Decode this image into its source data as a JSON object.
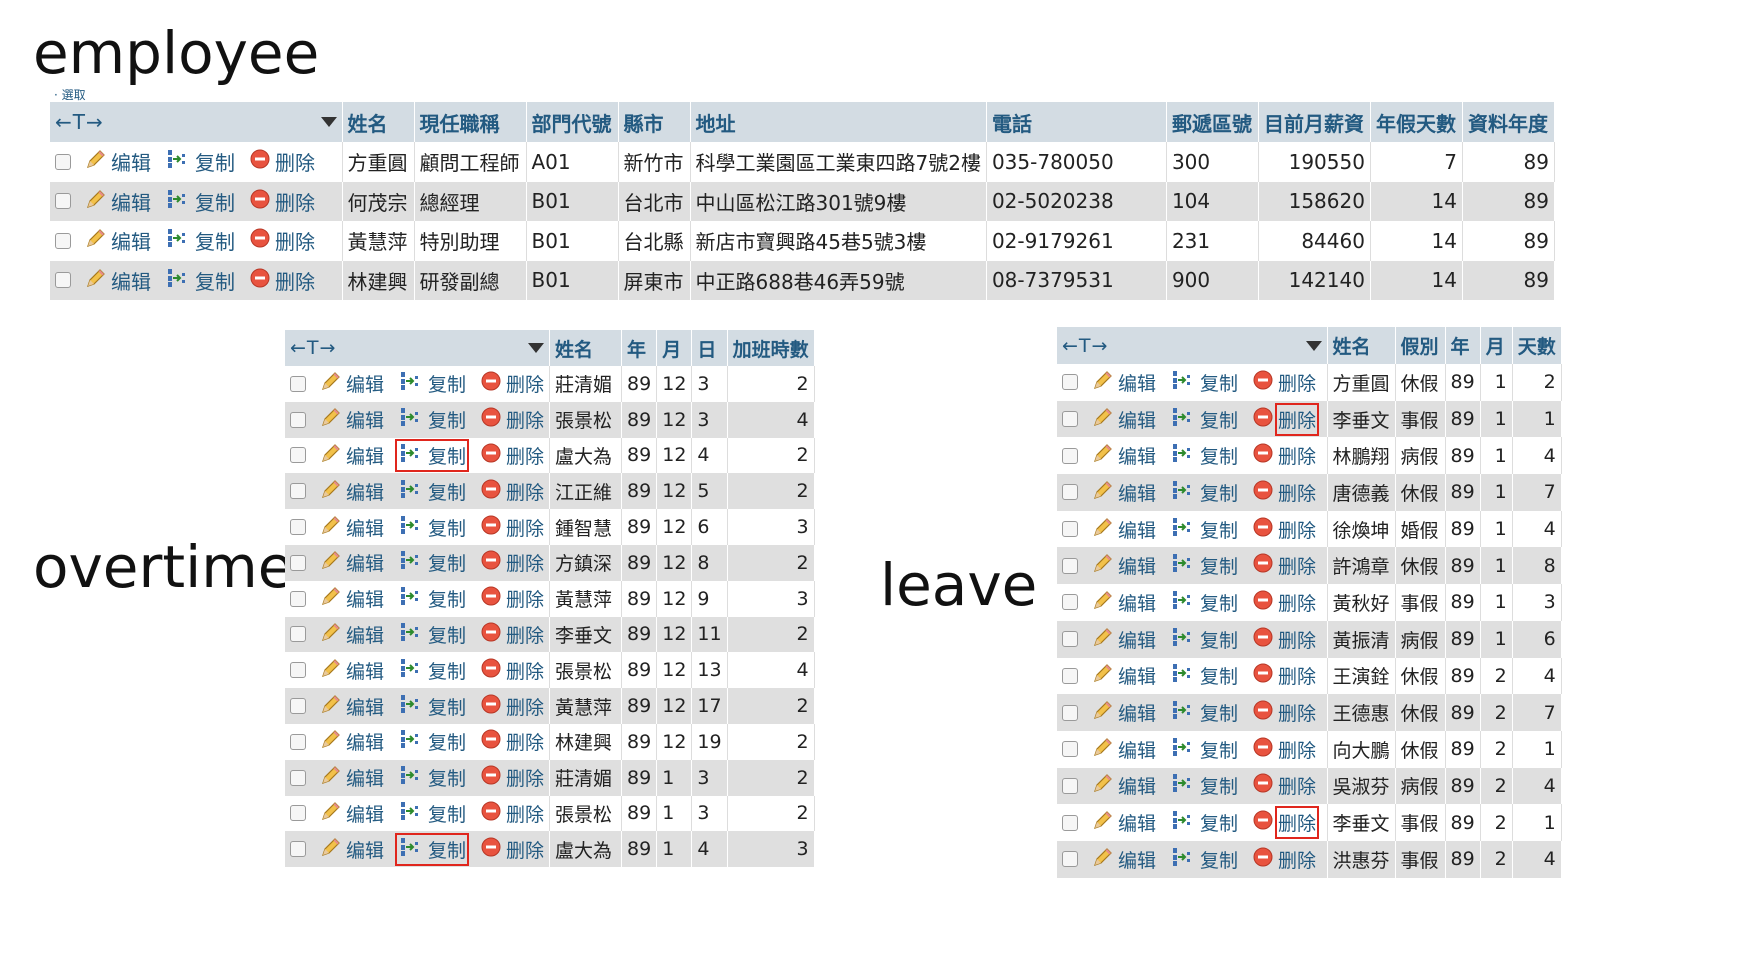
{
  "labels": {
    "employee": "employee",
    "overtime": "overtime",
    "leave": "leave"
  },
  "crumb": "· 選取",
  "nav_arrows": "←T→",
  "actions": {
    "edit": "编辑",
    "copy": "复制",
    "delete": "删除"
  },
  "colors": {
    "header_bg": "#d3dce3",
    "link": "#235a81",
    "row_alt": "#dfdfdf",
    "highlight": "#e0261d"
  },
  "employee": {
    "columns": [
      "姓名",
      "現任職稱",
      "部門代號",
      "縣市",
      "地址",
      "電話",
      "郵遞區號",
      "目前月薪資",
      "年假天數",
      "資料年度"
    ],
    "rows": [
      [
        "方重圓",
        "顧問工程師",
        "A01",
        "新竹市",
        "科學工業園區工業東四路7號2樓",
        "035-780050",
        "300",
        "190550",
        "7",
        "89"
      ],
      [
        "何茂宗",
        "總經理",
        "B01",
        "台北市",
        "中山區松江路301號9樓",
        "02-5020238",
        "104",
        "158620",
        "14",
        "89"
      ],
      [
        "黃慧萍",
        "特別助理",
        "B01",
        "台北縣",
        "新店市寶興路45巷5號3樓",
        "02-9179261",
        "231",
        "84460",
        "14",
        "89"
      ],
      [
        "林建興",
        "研發副總",
        "B01",
        "屏東市",
        "中正路688巷46弄59號",
        "08-7379531",
        "900",
        "142140",
        "14",
        "89"
      ]
    ]
  },
  "overtime": {
    "columns": [
      "姓名",
      "年",
      "月",
      "日",
      "加班時數"
    ],
    "rows": [
      [
        "莊清媚",
        "89",
        "12",
        "3",
        "2"
      ],
      [
        "張景松",
        "89",
        "12",
        "3",
        "4"
      ],
      [
        "盧大為",
        "89",
        "12",
        "4",
        "2"
      ],
      [
        "江正維",
        "89",
        "12",
        "5",
        "2"
      ],
      [
        "鍾智慧",
        "89",
        "12",
        "6",
        "3"
      ],
      [
        "方鎮深",
        "89",
        "12",
        "8",
        "2"
      ],
      [
        "黃慧萍",
        "89",
        "12",
        "9",
        "3"
      ],
      [
        "李垂文",
        "89",
        "12",
        "11",
        "2"
      ],
      [
        "張景松",
        "89",
        "12",
        "13",
        "4"
      ],
      [
        "黃慧萍",
        "89",
        "12",
        "17",
        "2"
      ],
      [
        "林建興",
        "89",
        "12",
        "19",
        "2"
      ],
      [
        "莊清媚",
        "89",
        "1",
        "3",
        "2"
      ],
      [
        "張景松",
        "89",
        "1",
        "3",
        "2"
      ],
      [
        "盧大為",
        "89",
        "1",
        "4",
        "3"
      ]
    ],
    "highlight_copy_rows": [
      2,
      13
    ]
  },
  "leave": {
    "columns": [
      "姓名",
      "假別",
      "年",
      "月",
      "天數"
    ],
    "rows": [
      [
        "方重圓",
        "休假",
        "89",
        "1",
        "2"
      ],
      [
        "李垂文",
        "事假",
        "89",
        "1",
        "1"
      ],
      [
        "林鵬翔",
        "病假",
        "89",
        "1",
        "4"
      ],
      [
        "唐德義",
        "休假",
        "89",
        "1",
        "7"
      ],
      [
        "徐煥坤",
        "婚假",
        "89",
        "1",
        "4"
      ],
      [
        "許鴻章",
        "休假",
        "89",
        "1",
        "8"
      ],
      [
        "黃秋好",
        "事假",
        "89",
        "1",
        "3"
      ],
      [
        "黃振清",
        "病假",
        "89",
        "1",
        "6"
      ],
      [
        "王演銓",
        "休假",
        "89",
        "2",
        "4"
      ],
      [
        "王德惠",
        "休假",
        "89",
        "2",
        "7"
      ],
      [
        "向大鵬",
        "休假",
        "89",
        "2",
        "1"
      ],
      [
        "吳淑芬",
        "病假",
        "89",
        "2",
        "4"
      ],
      [
        "李垂文",
        "事假",
        "89",
        "2",
        "1"
      ],
      [
        "洪惠芬",
        "事假",
        "89",
        "2",
        "4"
      ]
    ],
    "highlight_delete_rows": [
      1,
      12
    ]
  }
}
